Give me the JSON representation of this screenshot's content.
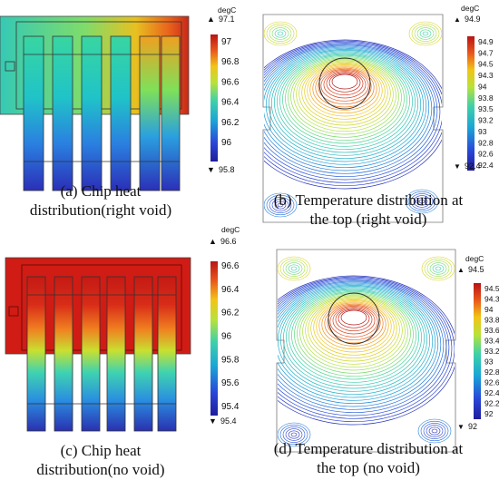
{
  "panels": [
    {
      "id": "a",
      "caption_lines": [
        "(a) Chip heat",
        "distribution(right void)"
      ],
      "colorbar": {
        "unit": "degC",
        "max": "97.1",
        "min": "95.8",
        "ticks": [
          "97",
          "96.8",
          "96.6",
          "96.4",
          "96.2",
          "96"
        ]
      }
    },
    {
      "id": "b",
      "caption_lines": [
        "(b) Temperature distribution at",
        "the top (right void)"
      ],
      "colorbar": {
        "unit": "degC",
        "max": "94.9",
        "min": "92.4",
        "ticks": [
          "94.9",
          "94.7",
          "94.5",
          "94.3",
          "94",
          "93.8",
          "93.5",
          "93.2",
          "93",
          "92.8",
          "92.6",
          "92.4"
        ]
      }
    },
    {
      "id": "c",
      "caption_lines": [
        "(c) Chip heat",
        "distribution(no void)"
      ],
      "colorbar": {
        "unit": "degC",
        "max": "96.6",
        "min": "95.4",
        "ticks": [
          "96.6",
          "96.4",
          "96.2",
          "96",
          "95.8",
          "95.6",
          "95.4"
        ]
      }
    },
    {
      "id": "d",
      "caption_lines": [
        "(d) Temperature distribution at",
        "the top (no void)"
      ],
      "colorbar": {
        "unit": "degC",
        "max": "94.5",
        "min": "92",
        "ticks": [
          "94.5",
          "94.3",
          "94",
          "93.8",
          "93.6",
          "93.4",
          "93.2",
          "93",
          "92.8",
          "92.6",
          "92.4",
          "92.2",
          "92"
        ]
      }
    }
  ]
}
